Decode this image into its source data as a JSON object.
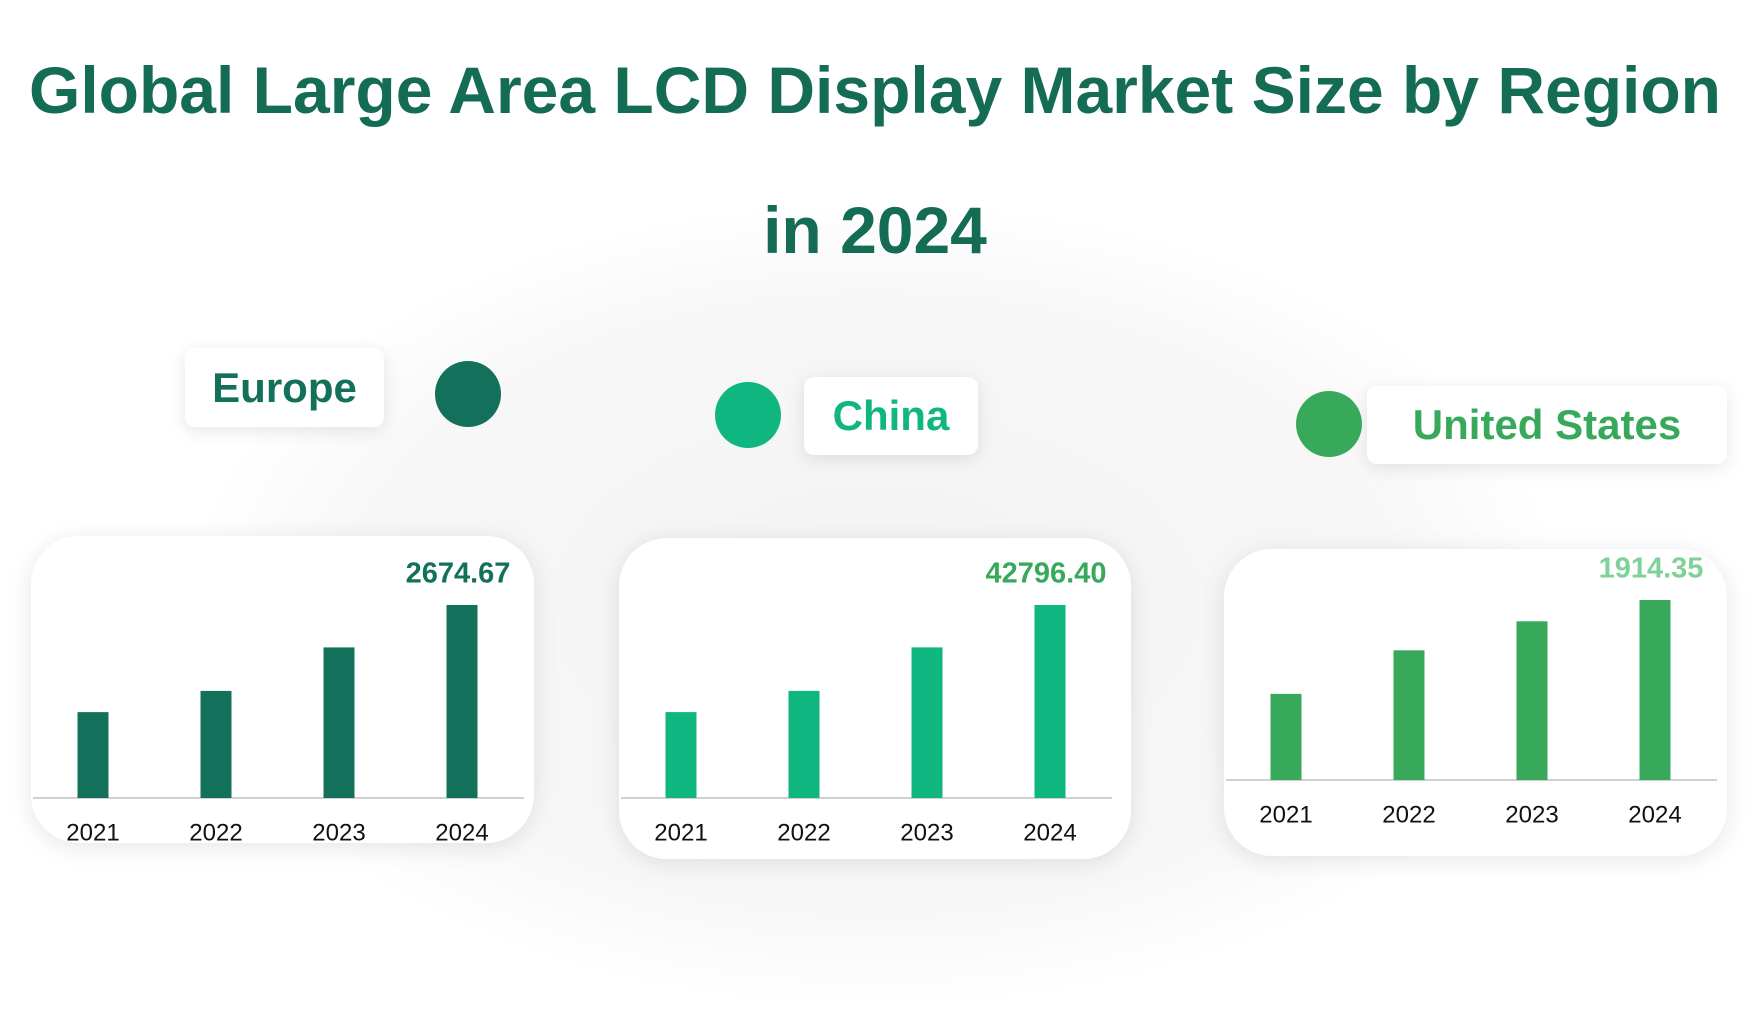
{
  "title": "Global Large Area LCD Display Market Size by Region in 2024",
  "chart_data": [
    {
      "type": "bar",
      "title": "Europe",
      "color": "#13705a",
      "value_label_color": "#13705a",
      "categories": [
        "2021",
        "2022",
        "2023",
        "2024"
      ],
      "values": [
        1190,
        1484,
        2087,
        2674.67
      ],
      "value_labels": [
        null,
        null,
        null,
        "2674.67"
      ]
    },
    {
      "type": "bar",
      "title": "China",
      "color": "#10b67f",
      "value_label_color": "#38a95a",
      "categories": [
        "2021",
        "2022",
        "2023",
        "2024"
      ],
      "values": [
        19048,
        23749,
        33397,
        42796.4
      ],
      "value_labels": [
        null,
        null,
        null,
        "42796.40"
      ]
    },
    {
      "type": "bar",
      "title": "United States",
      "color": "#38a95a",
      "value_label_color": "#7fd19a",
      "categories": [
        "2021",
        "2022",
        "2023",
        "2024"
      ],
      "values": [
        916,
        1379,
        1688,
        1914.35
      ],
      "value_labels": [
        null,
        null,
        null,
        "1914.35"
      ]
    }
  ]
}
